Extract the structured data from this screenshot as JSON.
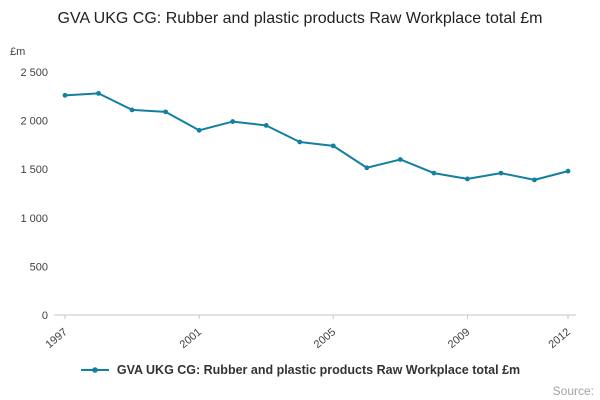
{
  "chart_data": {
    "type": "line",
    "title": "GVA UKG CG: Rubber and plastic products Raw Workplace total £m",
    "unit_label": "£m",
    "x": [
      1997,
      1998,
      1999,
      2000,
      2001,
      2002,
      2003,
      2004,
      2005,
      2006,
      2007,
      2008,
      2009,
      2010,
      2011,
      2012
    ],
    "values": [
      2260,
      2280,
      2110,
      2090,
      1900,
      1990,
      1950,
      1780,
      1740,
      1515,
      1600,
      1460,
      1400,
      1460,
      1390,
      1480
    ],
    "ylim": [
      0,
      2500
    ],
    "yticks": [
      0,
      500,
      1000,
      1500,
      2000,
      2500
    ],
    "ytick_labels": [
      "0",
      "500",
      "1 000",
      "1 500",
      "2 000",
      "2 500"
    ],
    "xticks": [
      1997,
      2001,
      2005,
      2009,
      2012
    ],
    "xtick_labels": [
      "1997",
      "2001",
      "2005",
      "2009",
      "2012"
    ],
    "grid": false,
    "legend_position": "bottom",
    "legend": "GVA UKG CG: Rubber and plastic products Raw Workplace total £m",
    "line_color": "#1380A1",
    "axis_color": "#c6c6c6",
    "tick_text_color": "#414042",
    "source_label": "Source:"
  }
}
